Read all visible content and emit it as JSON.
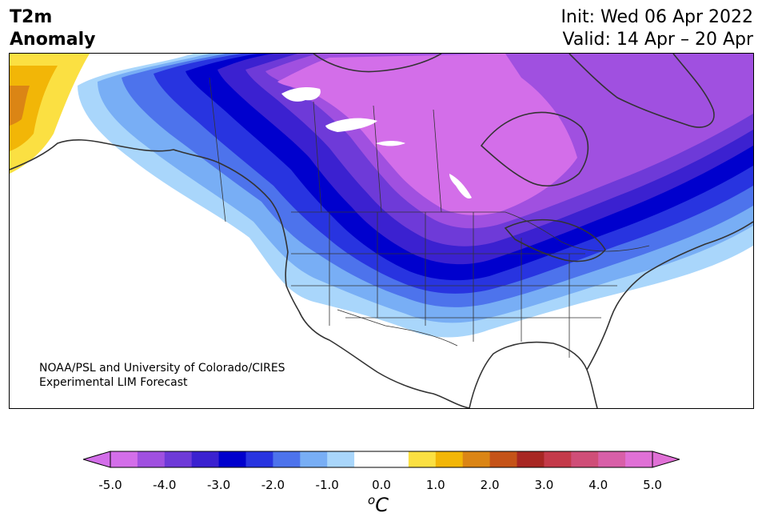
{
  "header": {
    "title_line1": "T2m",
    "title_line2": "Anomaly",
    "init": "Init: Wed 06 Apr 2022",
    "valid": "Valid: 14 Apr – 20 Apr"
  },
  "map": {
    "region": "North America",
    "credit_line1": "NOAA/PSL and University of Colorado/CIRES",
    "credit_line2": "Experimental LIM Forecast"
  },
  "colorbar": {
    "unit_base": "C",
    "unit_superscript": "o",
    "ticks": [
      "-5.0",
      "-4.0",
      "-3.0",
      "-2.0",
      "-1.0",
      "0.0",
      "1.0",
      "2.0",
      "3.0",
      "4.0",
      "5.0"
    ],
    "colors": [
      "#d36ee9",
      "#a050e0",
      "#6e3ad8",
      "#3b21d0",
      "#0000cd",
      "#2834e0",
      "#4d73ec",
      "#78aef5",
      "#a9d6fb",
      "#ffffff",
      "#ffffff",
      "#fbe042",
      "#f2b607",
      "#db8515",
      "#c55318",
      "#a82723",
      "#c43a4a",
      "#cf4e78",
      "#d85fa8",
      "#e070d6"
    ]
  },
  "colors": {
    "ocean": "#ffffff",
    "coast": "#333333"
  }
}
